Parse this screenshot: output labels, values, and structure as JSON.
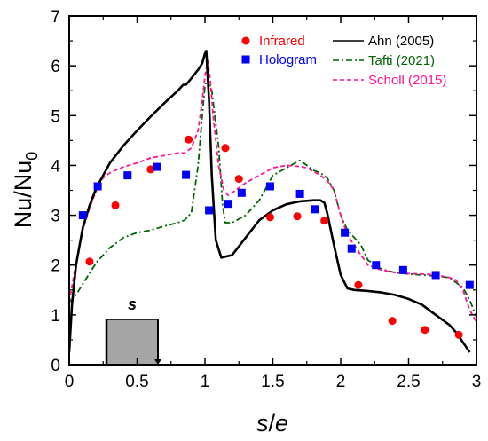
{
  "chart_data": {
    "type": "line",
    "xlabel_main": "s",
    "xlabel_slash": "/",
    "xlabel_den": "e",
    "ylabel_main": "Nu/Nu",
    "ylabel_sub": "0",
    "xlim": [
      0,
      3
    ],
    "ylim": [
      0,
      7
    ],
    "xticks": [
      0,
      0.5,
      1,
      1.5,
      2,
      2.5,
      3
    ],
    "xtick_labels": [
      "0",
      "0.5",
      "1",
      "1.5",
      "2",
      "2.5",
      "3"
    ],
    "yticks": [
      0,
      1,
      2,
      3,
      4,
      5,
      6,
      7
    ],
    "ytick_labels": [
      "0",
      "1",
      "2",
      "3",
      "4",
      "5",
      "6",
      "7"
    ],
    "grid": false,
    "legend_placement": "top-right",
    "inset_label": "s",
    "series": [
      {
        "name": "Infrared",
        "kind": "scatter",
        "marker": "circle",
        "color": "#ff0000",
        "x": [
          0.15,
          0.34,
          0.6,
          0.88,
          1.15,
          1.25,
          1.48,
          1.68,
          1.88,
          2.13,
          2.38,
          2.62,
          2.87
        ],
        "y": [
          2.07,
          3.2,
          3.92,
          4.52,
          4.35,
          3.73,
          2.96,
          2.98,
          2.89,
          1.6,
          0.88,
          0.7,
          0.6
        ]
      },
      {
        "name": "Hologram",
        "kind": "scatter",
        "marker": "square",
        "color": "#0000ff",
        "x": [
          0.1,
          0.21,
          0.43,
          0.65,
          0.86,
          1.03,
          1.17,
          1.27,
          1.48,
          1.7,
          1.81,
          2.03,
          2.08,
          2.26,
          2.46,
          2.7,
          2.95
        ],
        "y": [
          3.0,
          3.58,
          3.8,
          3.97,
          3.81,
          3.1,
          3.23,
          3.45,
          3.58,
          3.43,
          3.12,
          2.65,
          2.33,
          2.0,
          1.9,
          1.8,
          1.6
        ]
      },
      {
        "name": "Ahn (2005)",
        "kind": "line",
        "style": "solid",
        "color": "#000000",
        "x": [
          0.0,
          0.02,
          0.05,
          0.1,
          0.15,
          0.2,
          0.3,
          0.4,
          0.5,
          0.6,
          0.7,
          0.8,
          0.84,
          0.86,
          0.9,
          0.95,
          0.98,
          1.0,
          1.01,
          1.03,
          1.05,
          1.08,
          1.12,
          1.2,
          1.3,
          1.4,
          1.5,
          1.6,
          1.7,
          1.8,
          1.85,
          1.88,
          1.9,
          1.95,
          2.0,
          2.05,
          2.1,
          2.2,
          2.3,
          2.4,
          2.5,
          2.6,
          2.7,
          2.8,
          2.85,
          2.9,
          2.95
        ],
        "y": [
          0.25,
          1.2,
          2.0,
          2.75,
          3.2,
          3.55,
          4.05,
          4.4,
          4.7,
          4.98,
          5.25,
          5.5,
          5.62,
          5.62,
          5.75,
          5.92,
          6.05,
          6.25,
          6.3,
          5.3,
          3.8,
          2.5,
          2.15,
          2.2,
          2.55,
          2.9,
          3.1,
          3.22,
          3.28,
          3.3,
          3.3,
          3.25,
          3.05,
          2.4,
          1.8,
          1.53,
          1.5,
          1.48,
          1.45,
          1.4,
          1.32,
          1.2,
          1.0,
          0.8,
          0.65,
          0.45,
          0.25
        ]
      },
      {
        "name": "Tafti (2021)",
        "kind": "line",
        "style": "dash-dot",
        "color": "#006400",
        "x": [
          0.0,
          0.05,
          0.1,
          0.2,
          0.3,
          0.4,
          0.5,
          0.6,
          0.7,
          0.8,
          0.85,
          0.9,
          0.95,
          0.98,
          1.0,
          1.02,
          1.05,
          1.1,
          1.13,
          1.15,
          1.2,
          1.3,
          1.4,
          1.5,
          1.6,
          1.7,
          1.75,
          1.8,
          1.85,
          1.9,
          1.95,
          2.0,
          2.05,
          2.1,
          2.15,
          2.2,
          2.3,
          2.4,
          2.5,
          2.6,
          2.7,
          2.8,
          2.9,
          2.95,
          3.0
        ],
        "y": [
          1.25,
          1.4,
          1.62,
          2.05,
          2.35,
          2.55,
          2.65,
          2.7,
          2.78,
          2.85,
          2.9,
          3.05,
          4.0,
          5.0,
          5.6,
          5.75,
          5.5,
          4.4,
          3.2,
          2.85,
          2.85,
          3.0,
          3.3,
          3.8,
          3.95,
          4.1,
          4.0,
          3.9,
          3.85,
          3.75,
          3.5,
          3.0,
          2.7,
          2.55,
          2.4,
          2.1,
          1.92,
          1.85,
          1.82,
          1.8,
          1.78,
          1.75,
          1.55,
          1.3,
          0.95
        ]
      },
      {
        "name": "Scholl (2015)",
        "kind": "line",
        "style": "dashed",
        "color": "#ff1493",
        "x": [
          0.0,
          0.05,
          0.1,
          0.15,
          0.2,
          0.25,
          0.3,
          0.4,
          0.5,
          0.6,
          0.7,
          0.8,
          0.85,
          0.9,
          0.95,
          0.98,
          1.0,
          1.02,
          1.04,
          1.06,
          1.1,
          1.14,
          1.17,
          1.2,
          1.3,
          1.4,
          1.5,
          1.6,
          1.7,
          1.75,
          1.8,
          1.85,
          1.9,
          1.95,
          2.0,
          2.05,
          2.1,
          2.15,
          2.2,
          2.3,
          2.4,
          2.5,
          2.6,
          2.7,
          2.8,
          2.85,
          2.9,
          2.95,
          3.0
        ],
        "y": [
          1.25,
          2.05,
          2.7,
          3.15,
          3.5,
          3.75,
          3.85,
          3.97,
          4.05,
          4.15,
          4.2,
          4.25,
          4.25,
          4.35,
          4.7,
          5.3,
          5.8,
          6.1,
          5.7,
          5.0,
          4.0,
          3.5,
          3.4,
          3.45,
          3.65,
          3.8,
          3.95,
          4.0,
          3.98,
          3.95,
          3.88,
          3.8,
          3.7,
          3.5,
          3.0,
          2.6,
          2.4,
          2.2,
          2.0,
          1.9,
          1.85,
          1.83,
          1.82,
          1.8,
          1.75,
          1.7,
          1.5,
          1.1,
          0.85
        ]
      }
    ]
  }
}
